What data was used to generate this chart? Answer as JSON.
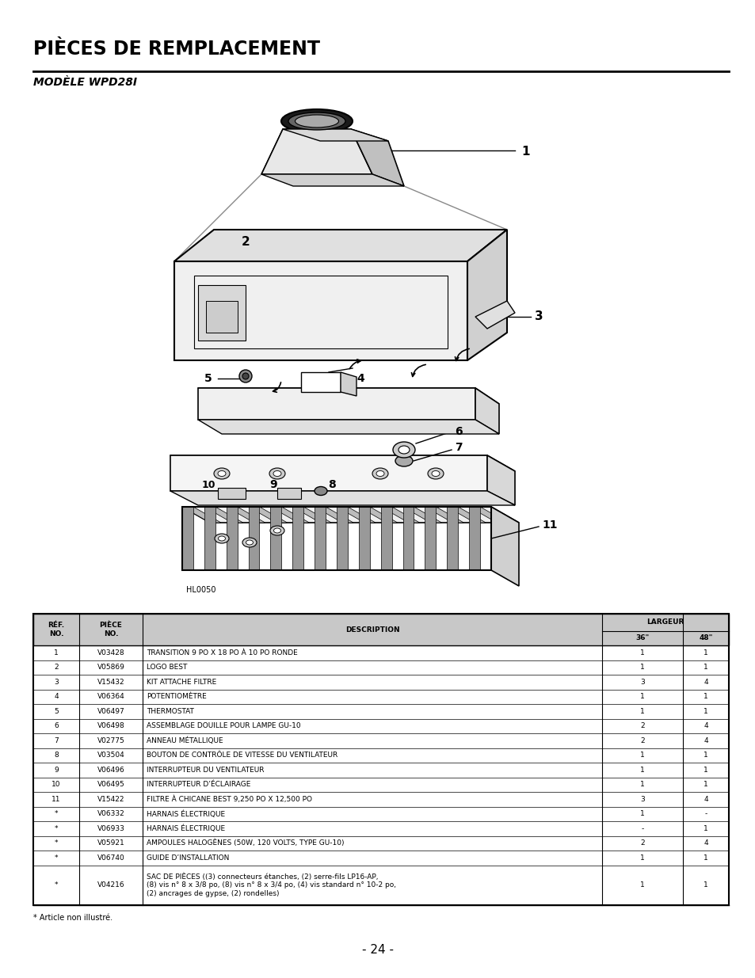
{
  "title": "PIÈCES DE REMPLACEMENT",
  "subtitle": "MODÈLE WPD28I",
  "footer": "- 24 -",
  "footnote": "* Article non illustré.",
  "bg_color": "#ffffff",
  "rows": [
    [
      "1",
      "V03428",
      "TRANSITION 9 PO X 18 PO À 10 PO RONDE",
      "1",
      "1"
    ],
    [
      "2",
      "V05869",
      "LOGO BEST",
      "1",
      "1"
    ],
    [
      "3",
      "V15432",
      "KIT ATTACHE FILTRE",
      "3",
      "4"
    ],
    [
      "4",
      "V06364",
      "POTENTIOMÈTRE",
      "1",
      "1"
    ],
    [
      "5",
      "V06497",
      "THERMOSTAT",
      "1",
      "1"
    ],
    [
      "6",
      "V06498",
      "ASSEMBLAGE DOUILLE POUR LAMPE GU-10",
      "2",
      "4"
    ],
    [
      "7",
      "V02775",
      "ANNEAU MÉTALLIQUE",
      "2",
      "4"
    ],
    [
      "8",
      "V03504",
      "BOUTON DE CONTRÔLE DE VITESSE DU VENTILATEUR",
      "1",
      "1"
    ],
    [
      "9",
      "V06496",
      "INTERRUPTEUR DU VENTILATEUR",
      "1",
      "1"
    ],
    [
      "10",
      "V06495",
      "INTERRUPTEUR D’ÉCLAIRAGE",
      "1",
      "1"
    ],
    [
      "11",
      "V15422",
      "FILTRE À CHICANE BEST 9,250 PO X 12,500 PO",
      "3",
      "4"
    ],
    [
      "*",
      "V06332",
      "HARNAIS ÉLECTRIQUE",
      "1",
      "-"
    ],
    [
      "*",
      "V06933",
      "HARNAIS ÉLECTRIQUE",
      "-",
      "1"
    ],
    [
      "*",
      "V05921",
      "AMPOULES HALOGÈNES (50W, 120 VOLTS, TYPE GU-10)",
      "2",
      "4"
    ],
    [
      "*",
      "V06740",
      "GUIDE D’INSTALLATION",
      "1",
      "1"
    ],
    [
      "*",
      "V04216",
      "SAC DE PIÈCES ((3) connecteurs étanches, (2) serre-fils LP16-AP,\n(8) vis n° 8 x 3/8 po, (8) vis n° 8 x 3/4 po, (4) vis standard n° 10-2 po,\n(2) ancrages de gypse, (2) rondelles)",
      "1",
      "1"
    ]
  ]
}
